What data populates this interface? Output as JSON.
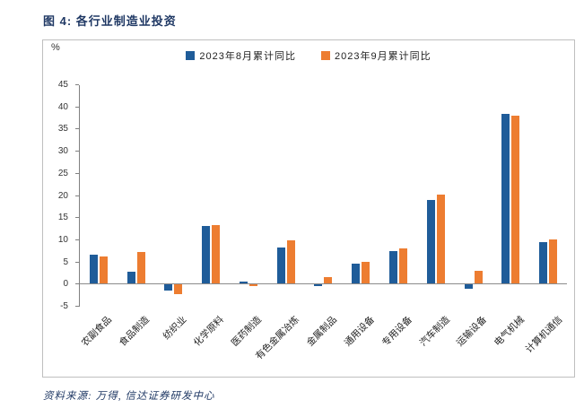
{
  "figure": {
    "title": "图 4: 各行业制造业投资"
  },
  "source_note": "资料来源: 万得, 信达证券研发中心",
  "chart_data": {
    "type": "bar",
    "title": "各行业制造业投资",
    "xlabel": "",
    "ylabel": "%",
    "ylim": [
      -5,
      45
    ],
    "ytick_step": 5,
    "grid": false,
    "legend_position": "top-center",
    "axis_color": "#808080",
    "categories": [
      "农副食品",
      "食品制造",
      "纺织业",
      "化学原料",
      "医药制造",
      "有色金属冶炼",
      "金属制品",
      "通用设备",
      "专用设备",
      "汽车制造",
      "运输设备",
      "电气机械",
      "计算机通信"
    ],
    "series": [
      {
        "name": "2023年8月累计同比",
        "color": "#1F5C99",
        "values": [
          6.8,
          2.8,
          -1.3,
          13.2,
          0.6,
          8.4,
          -0.4,
          4.8,
          7.6,
          19.0,
          -0.9,
          38.6,
          9.6
        ]
      },
      {
        "name": "2023年9月累计同比",
        "color": "#ED7D31",
        "values": [
          6.3,
          7.4,
          -2.2,
          13.5,
          -0.3,
          9.9,
          1.7,
          5.1,
          8.1,
          20.4,
          3.1,
          38.1,
          10.2
        ]
      }
    ]
  }
}
